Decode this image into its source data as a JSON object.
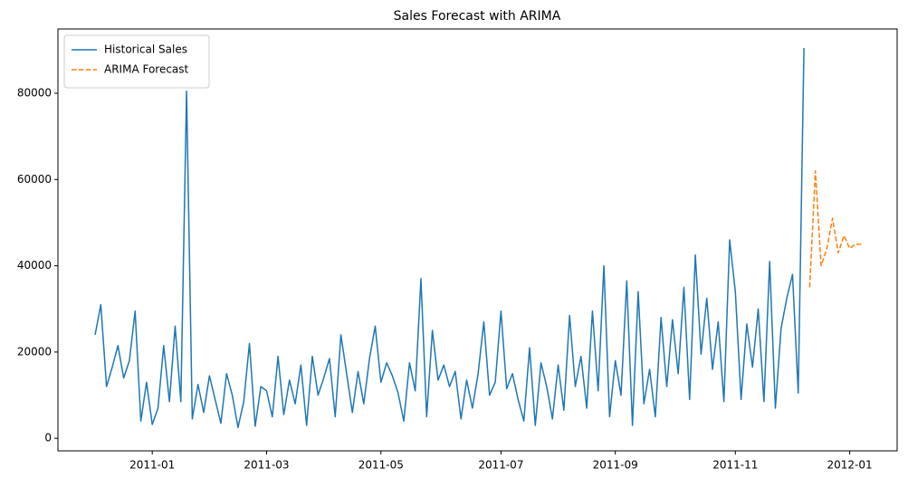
{
  "chart_data": {
    "type": "line",
    "title": "Sales Forecast with ARIMA",
    "categories": [
      null,
      null,
      null,
      null,
      null,
      null,
      null,
      null,
      null,
      null,
      "2011-01",
      null,
      null,
      null,
      null,
      null,
      null,
      null,
      null,
      null,
      null,
      null,
      null,
      null,
      null,
      null,
      null,
      null,
      null,
      null,
      "2011-03",
      null,
      null,
      null,
      null,
      null,
      null,
      null,
      null,
      null,
      null,
      null,
      null,
      null,
      null,
      null,
      null,
      null,
      null,
      null,
      "2011-05",
      null,
      null,
      null,
      null,
      null,
      null,
      null,
      null,
      null,
      null,
      null,
      null,
      null,
      null,
      null,
      null,
      null,
      null,
      null,
      null,
      "2011-07",
      null,
      null,
      null,
      null,
      null,
      null,
      null,
      null,
      null,
      null,
      null,
      null,
      null,
      null,
      null,
      null,
      null,
      null,
      null,
      "2011-09",
      null,
      null,
      null,
      null,
      null,
      null,
      null,
      null,
      null,
      null,
      null,
      null,
      null,
      null,
      null,
      null,
      null,
      null,
      null,
      null,
      "2011-11",
      null,
      null,
      null,
      null,
      null,
      null,
      null,
      null,
      null,
      null,
      null,
      null,
      null,
      null,
      null,
      null,
      null,
      null,
      null,
      "2012-01",
      null,
      null
    ],
    "series": [
      {
        "name": "Historical Sales",
        "color": "#1f77b4",
        "dashed": false,
        "values": [
          24000,
          31000,
          12000,
          16500,
          21500,
          14000,
          18000,
          29500,
          4000,
          13000,
          3200,
          7000,
          21500,
          8500,
          26000,
          8500,
          80500,
          4500,
          12500,
          6000,
          14500,
          9000,
          3500,
          15000,
          10000,
          2500,
          8500,
          22000,
          2800,
          12000,
          11000,
          5000,
          19000,
          5500,
          13500,
          8000,
          17000,
          3000,
          19000,
          10000,
          14000,
          18500,
          5000,
          24000,
          15000,
          6000,
          15500,
          8000,
          18500,
          26000,
          13000,
          17500,
          14500,
          10500,
          4000,
          17500,
          11000,
          37000,
          5000,
          25000,
          13500,
          17000,
          12000,
          15500,
          4500,
          13500,
          7000,
          15000,
          27000,
          10000,
          13000,
          29500,
          11500,
          15000,
          9000,
          4000,
          21000,
          3000,
          17500,
          12000,
          4500,
          17000,
          6500,
          28500,
          12000,
          19000,
          7000,
          29500,
          11000,
          40000,
          5000,
          18000,
          10000,
          36500,
          3000,
          34000,
          8000,
          16000,
          5000,
          28000,
          12000,
          27500,
          15000,
          35000,
          9000,
          42500,
          19500,
          32500,
          16000,
          27000,
          8500,
          46000,
          34000,
          9000,
          26500,
          16500,
          30000,
          8500,
          41000,
          7000,
          25500,
          32500,
          38000,
          10500,
          90500,
          null,
          null,
          null,
          null,
          null,
          null,
          null,
          null,
          null,
          null
        ]
      },
      {
        "name": "ARIMA Forecast",
        "color": "#ff7f0e",
        "dashed": true,
        "values": [
          null,
          null,
          null,
          null,
          null,
          null,
          null,
          null,
          null,
          null,
          null,
          null,
          null,
          null,
          null,
          null,
          null,
          null,
          null,
          null,
          null,
          null,
          null,
          null,
          null,
          null,
          null,
          null,
          null,
          null,
          null,
          null,
          null,
          null,
          null,
          null,
          null,
          null,
          null,
          null,
          null,
          null,
          null,
          null,
          null,
          null,
          null,
          null,
          null,
          null,
          null,
          null,
          null,
          null,
          null,
          null,
          null,
          null,
          null,
          null,
          null,
          null,
          null,
          null,
          null,
          null,
          null,
          null,
          null,
          null,
          null,
          null,
          null,
          null,
          null,
          null,
          null,
          null,
          null,
          null,
          null,
          null,
          null,
          null,
          null,
          null,
          null,
          null,
          null,
          null,
          null,
          null,
          null,
          null,
          null,
          null,
          null,
          null,
          null,
          null,
          null,
          null,
          null,
          null,
          null,
          null,
          null,
          null,
          null,
          null,
          null,
          null,
          null,
          null,
          null,
          null,
          null,
          null,
          null,
          null,
          null,
          null,
          null,
          null,
          null,
          35000,
          62000,
          40000,
          44000,
          51000,
          43000,
          47000,
          44000,
          45000,
          45000
        ]
      }
    ],
    "ylim": [
      -2900,
      94900
    ],
    "yticks": [
      0,
      20000,
      40000,
      60000,
      80000
    ],
    "grid": false,
    "legend": "upper-left"
  }
}
